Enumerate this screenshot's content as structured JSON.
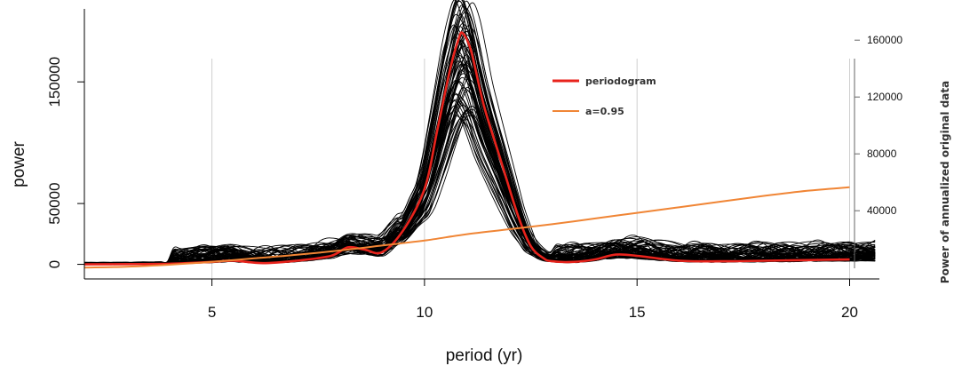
{
  "chart_data": {
    "type": "line",
    "xlabel": "period (yr)",
    "ylabel": "power",
    "ylabel_right": "Power of annualized original data",
    "xlim": [
      2,
      20.7
    ],
    "ylim": [
      -12000,
      210000
    ],
    "ylim_right": [
      -8000,
      182000
    ],
    "x_ticks": [
      5,
      10,
      15,
      20
    ],
    "x_tick_labels": [
      "5",
      "10",
      "15",
      "20"
    ],
    "y_ticks": [
      0,
      50000,
      150000
    ],
    "y_tick_labels": [
      "0",
      "50000",
      "150000"
    ],
    "y_ticks_right": [
      40000,
      80000,
      120000,
      160000
    ],
    "y_tick_labels_right": [
      "40000",
      "80000",
      "120000",
      "160000"
    ],
    "grid": "vertical",
    "legend_position": "top-right",
    "colors": {
      "periodogram": "#e8231c",
      "ar_spectrum": "#f08535",
      "ensemble": "#000000"
    },
    "series": [
      {
        "name": "periodogram",
        "axis": "left",
        "x": [
          2.0,
          3.0,
          4.0,
          5.0,
          5.5,
          6.2,
          7.0,
          7.8,
          8.2,
          8.6,
          9.0,
          9.5,
          10.0,
          10.3,
          10.6,
          10.8,
          10.9,
          11.1,
          11.4,
          11.8,
          12.2,
          12.5,
          12.8,
          13.0,
          13.5,
          14.0,
          14.5,
          15.0,
          16.0,
          17.0,
          18.0,
          19.0,
          20.0
        ],
        "y": [
          0,
          200,
          500,
          2000,
          3000,
          1000,
          3000,
          7000,
          14000,
          12000,
          10000,
          28000,
          62000,
          110000,
          160000,
          185000,
          190000,
          175000,
          130000,
          85000,
          40000,
          15000,
          5000,
          2500,
          2000,
          4000,
          8000,
          7000,
          3000,
          2500,
          3000,
          3500,
          4000
        ]
      },
      {
        "name": "a=0.95",
        "axis": "right",
        "x": [
          2.0,
          3.0,
          4.0,
          5.0,
          6.0,
          7.0,
          8.0,
          9.0,
          10.0,
          11.0,
          12.0,
          13.0,
          14.0,
          15.0,
          16.0,
          17.0,
          18.0,
          19.0,
          20.0
        ],
        "y": [
          0,
          600,
          2000,
          4000,
          6500,
          9000,
          12000,
          15500,
          19000,
          23500,
          27000,
          30500,
          34500,
          38500,
          42500,
          46500,
          50500,
          54000,
          56500
        ]
      }
    ],
    "legend": [
      {
        "name": "periodogram",
        "color": "#e8231c"
      },
      {
        "name": "a=0.95",
        "color": "#f08535"
      }
    ]
  }
}
